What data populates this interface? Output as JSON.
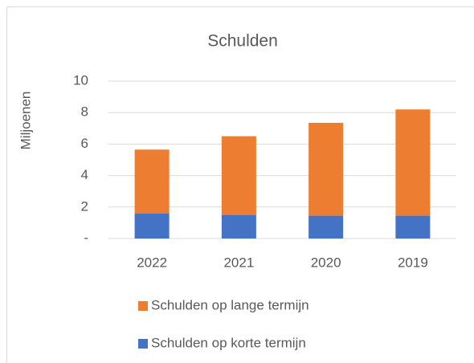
{
  "chart_data": {
    "type": "stacked_bar",
    "title": "Schulden",
    "y_label": "Miljoenen",
    "categories": [
      "2022",
      "2021",
      "2020",
      "2019"
    ],
    "series": [
      {
        "name": "Schulden op korte termijn",
        "color": "#4472c4",
        "values": [
          1.6,
          1.5,
          1.45,
          1.45
        ]
      },
      {
        "name": "Schulden op lange termijn",
        "color": "#ed7d31",
        "values": [
          4.05,
          5.0,
          5.9,
          6.75
        ]
      }
    ],
    "ylim": [
      0,
      10
    ],
    "yticks": [
      {
        "value": 0,
        "label": "-"
      },
      2,
      4,
      6,
      8,
      10
    ],
    "grid": true,
    "legend": "bottom"
  }
}
